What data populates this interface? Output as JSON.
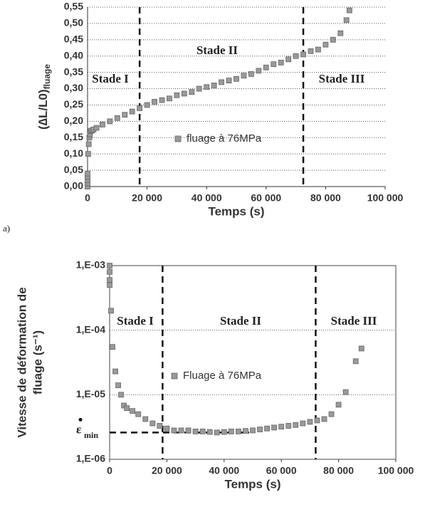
{
  "chart_data": [
    {
      "type": "scatter",
      "panel_label": "a)",
      "x_label": "Temps (s)",
      "y_label": "(∆L/L0)",
      "y_label_sub": "fluage",
      "xlim": [
        0,
        100000
      ],
      "ylim": [
        0,
        0.55
      ],
      "log_y": false,
      "grid": true,
      "frame": false,
      "xticks": [
        0,
        {
          "value": 20000,
          "label": "20 000"
        },
        {
          "value": 40000,
          "label": "40 000"
        },
        {
          "value": 60000,
          "label": "60 000"
        },
        {
          "value": 80000,
          "label": "80 000"
        },
        {
          "value": 100000,
          "label": "100 000"
        }
      ],
      "yticks": [
        {
          "value": 0,
          "label": "0,00"
        },
        {
          "value": 0.05,
          "label": "0,05"
        },
        {
          "value": 0.1,
          "label": "0,10"
        },
        {
          "value": 0.15,
          "label": "0,15"
        },
        {
          "value": 0.2,
          "label": "0,20"
        },
        {
          "value": 0.25,
          "label": "0,25"
        },
        {
          "value": 0.3,
          "label": "0,30"
        },
        {
          "value": 0.35,
          "label": "0,35"
        },
        {
          "value": 0.4,
          "label": "0,40"
        },
        {
          "value": 0.45,
          "label": "0,45"
        },
        {
          "value": 0.5,
          "label": "0,50"
        },
        {
          "value": 0.55,
          "label": "0,55"
        }
      ],
      "vlines": [
        17500,
        72500
      ],
      "stages": [
        "Stade I",
        "Stade II",
        "Stade III"
      ],
      "series": [
        {
          "name": "fluage à 76MPa",
          "color": "#999999",
          "x": [
            0,
            0,
            0,
            0,
            0,
            200,
            400,
            600,
            800,
            1000,
            1500,
            2000,
            3000,
            5000,
            7500,
            10000,
            12500,
            15000,
            17500,
            20000,
            22500,
            25000,
            27500,
            30000,
            32500,
            35000,
            37500,
            40000,
            42500,
            45000,
            47500,
            50000,
            52500,
            55000,
            57500,
            60000,
            62500,
            65000,
            67500,
            70000,
            72500,
            75000,
            77500,
            80000,
            82500,
            85000,
            87000,
            88000
          ],
          "values": [
            0.0,
            0.01,
            0.02,
            0.03,
            0.04,
            0.1,
            0.13,
            0.15,
            0.16,
            0.17,
            0.172,
            0.175,
            0.18,
            0.19,
            0.2,
            0.21,
            0.22,
            0.23,
            0.24,
            0.25,
            0.26,
            0.265,
            0.27,
            0.28,
            0.285,
            0.29,
            0.3,
            0.305,
            0.31,
            0.32,
            0.325,
            0.33,
            0.34,
            0.345,
            0.355,
            0.365,
            0.375,
            0.38,
            0.39,
            0.4,
            0.405,
            0.415,
            0.42,
            0.435,
            0.45,
            0.47,
            0.51,
            0.54
          ]
        }
      ]
    },
    {
      "type": "scatter",
      "x_label": "Temps (s)",
      "y_label": "Vitesse de déformation de",
      "y_label_line2": "fluage (s⁻¹)",
      "xlim": [
        0,
        100000
      ],
      "ylim": [
        1e-06,
        0.001
      ],
      "log_y": true,
      "grid": true,
      "frame": true,
      "xticks": [
        0,
        {
          "value": 20000,
          "label": "20 000"
        },
        {
          "value": 40000,
          "label": "40 000"
        },
        {
          "value": 60000,
          "label": "60 000"
        },
        {
          "value": 80000,
          "label": "80 000"
        },
        {
          "value": 100000,
          "label": "100 000"
        }
      ],
      "yticks": [
        {
          "value": 1e-06,
          "label": "1,E-06"
        },
        {
          "value": 1e-05,
          "label": "1,E-05"
        },
        {
          "value": 0.0001,
          "label": "1,E-04"
        },
        {
          "value": 0.001,
          "label": "1,E-03"
        }
      ],
      "vlines": [
        18500,
        72000
      ],
      "hline": 2.6e-06,
      "epsilon_label": "ε",
      "epsilon_sub": "min",
      "stages": [
        "Stade I",
        "Stade II",
        "Stade III"
      ],
      "series": [
        {
          "name": "Fluage à 76MPa",
          "color": "#999999",
          "x": [
            0,
            0,
            0,
            0,
            500,
            1000,
            2000,
            3000,
            4000,
            5000,
            6000,
            8000,
            10000,
            12500,
            15000,
            17500,
            20000,
            22500,
            25000,
            27500,
            30000,
            32500,
            35000,
            37500,
            40000,
            42500,
            45000,
            47500,
            50000,
            52500,
            55000,
            57500,
            60000,
            62500,
            65000,
            67500,
            70000,
            72500,
            75000,
            77500,
            80000,
            82500,
            86000,
            88000
          ],
          "values": [
            0.001,
            0.0008,
            0.0006,
            0.0005,
            0.0002,
            5.5e-05,
            2.3e-05,
            1.4e-05,
            1e-05,
            6.8e-06,
            6.2e-06,
            5.6e-06,
            5e-06,
            4.2e-06,
            3.6e-06,
            3.3e-06,
            3e-06,
            2.8e-06,
            2.8e-06,
            2.8e-06,
            2.7e-06,
            2.7e-06,
            2.65e-06,
            2.6e-06,
            2.65e-06,
            2.7e-06,
            2.7e-06,
            2.75e-06,
            2.8e-06,
            2.9e-06,
            3e-06,
            3.1e-06,
            3.2e-06,
            3.3e-06,
            3.4e-06,
            3.6e-06,
            3.8e-06,
            4e-06,
            4.2e-06,
            5e-06,
            7e-06,
            1.1e-05,
            3.3e-05,
            5.2e-05
          ]
        }
      ]
    }
  ]
}
